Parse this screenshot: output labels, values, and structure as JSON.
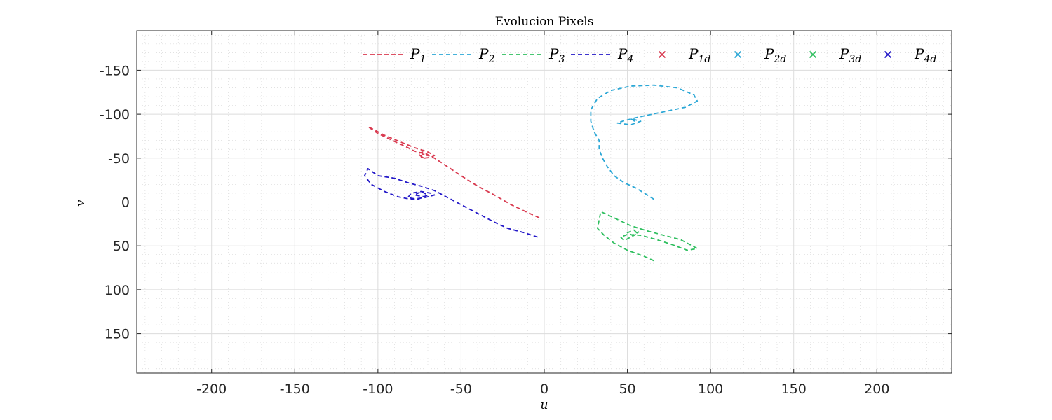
{
  "chart_data": {
    "type": "line",
    "title": "Evolucion Pixels",
    "xlabel": "u",
    "ylabel": "v",
    "xlim": [
      -245,
      245
    ],
    "ylim": [
      -195,
      195
    ],
    "y_reversed": true,
    "xticks": [
      -200,
      -150,
      -100,
      -50,
      0,
      50,
      100,
      150,
      200
    ],
    "yticks": [
      -150,
      -100,
      -50,
      0,
      50,
      100,
      150
    ],
    "grid": true,
    "minor_grid": true,
    "legend_position": "top-right",
    "series": [
      {
        "name": "P",
        "sub": "1",
        "style": "dashed",
        "color": "#d9394f",
        "x": [
          -3,
          -10,
          -20,
          -30,
          -40,
          -50,
          -58,
          -62,
          -66,
          -70,
          -74,
          -78,
          -82,
          -90,
          -100,
          -106,
          -104,
          -96,
          -86,
          -78,
          -70,
          -66,
          -68,
          -72,
          -74,
          -76,
          -73,
          -70,
          -72,
          -75,
          -71
        ],
        "y": [
          18,
          12,
          3,
          -8,
          -18,
          -30,
          -40,
          -45,
          -50,
          -53,
          -56,
          -58,
          -62,
          -69,
          -78,
          -86,
          -84,
          -76,
          -68,
          -62,
          -57,
          -53,
          -51,
          -50,
          -52,
          -55,
          -57,
          -54,
          -50,
          -52,
          -56
        ]
      },
      {
        "name": "P",
        "sub": "2",
        "style": "dashed",
        "color": "#2ba7d6",
        "x": [
          66,
          62,
          55,
          48,
          42,
          38,
          35,
          33,
          33,
          30,
          28,
          28,
          32,
          40,
          52,
          66,
          80,
          90,
          92,
          85,
          75,
          65,
          55,
          47,
          44,
          52,
          58,
          52,
          56
        ],
        "y": [
          -3,
          -8,
          -16,
          -22,
          -30,
          -40,
          -50,
          -60,
          -70,
          -80,
          -92,
          -105,
          -118,
          -127,
          -132,
          -133,
          -130,
          -122,
          -115,
          -108,
          -104,
          -100,
          -96,
          -92,
          -90,
          -88,
          -92,
          -95,
          -90
        ]
      },
      {
        "name": "P",
        "sub": "3",
        "style": "dashed",
        "color": "#2fbf5f",
        "x": [
          66,
          60,
          50,
          42,
          36,
          32,
          34,
          42,
          52,
          62,
          72,
          82,
          92,
          86,
          76,
          66,
          58,
          50,
          46,
          48,
          52,
          56,
          54,
          50,
          53,
          57
        ],
        "y": [
          67,
          62,
          55,
          47,
          38,
          30,
          11,
          18,
          27,
          33,
          38,
          43,
          53,
          55,
          48,
          42,
          38,
          37,
          40,
          44,
          40,
          36,
          32,
          35,
          38,
          34
        ]
      },
      {
        "name": "P",
        "sub": "4",
        "style": "dashed",
        "color": "#2318c8",
        "x": [
          -4,
          -12,
          -22,
          -30,
          -40,
          -50,
          -58,
          -66,
          -74,
          -82,
          -90,
          -100,
          -106,
          -108,
          -104,
          -96,
          -88,
          -80,
          -72,
          -66,
          -68,
          -74,
          -80,
          -82,
          -76,
          -70,
          -74,
          -78,
          -72
        ],
        "y": [
          40,
          35,
          30,
          23,
          13,
          3,
          -5,
          -13,
          -18,
          -22,
          -27,
          -30,
          -38,
          -30,
          -20,
          -12,
          -6,
          -3,
          -5,
          -8,
          -10,
          -12,
          -10,
          -5,
          -3,
          -8,
          -12,
          -8,
          -6
        ]
      }
    ],
    "desired_points": [
      {
        "name": "P",
        "sub": "1d",
        "color": "#d9394f"
      },
      {
        "name": "P",
        "sub": "2d",
        "color": "#2ba7d6"
      },
      {
        "name": "P",
        "sub": "3d",
        "color": "#2fbf5f"
      },
      {
        "name": "P",
        "sub": "4d",
        "color": "#2318c8"
      }
    ]
  }
}
